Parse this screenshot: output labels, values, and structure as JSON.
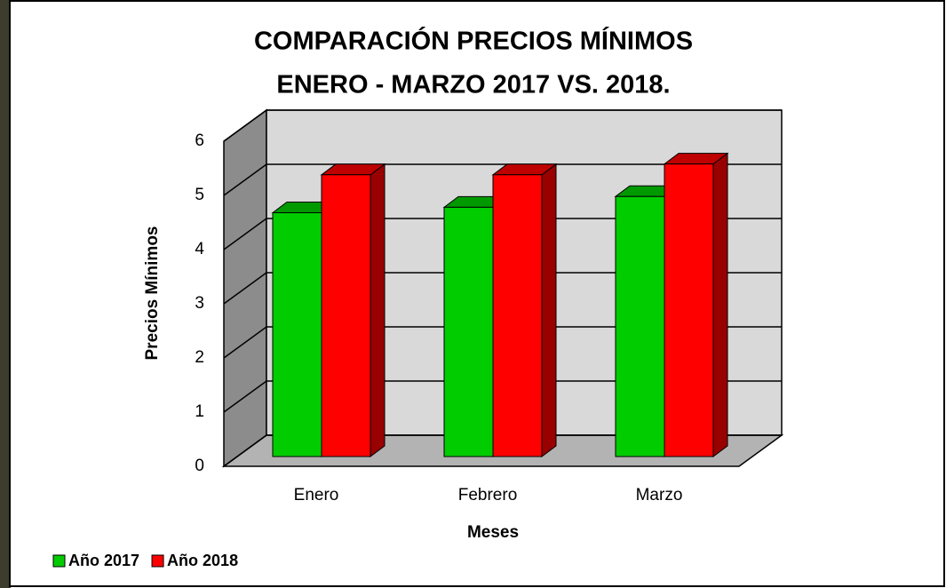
{
  "chart_data": {
    "type": "bar3d",
    "title": "COMPARACIÓN PRECIOS MÍNIMOS",
    "subtitle": "ENERO - MARZO 2017 VS. 2018.",
    "x_label": "Meses",
    "y_label": "Precios Mínimos",
    "categories": [
      "Enero",
      "Febrero",
      "Marzo"
    ],
    "series": [
      {
        "name": "Año 2017",
        "color": "#00cc00",
        "values": [
          4.5,
          4.6,
          4.8
        ]
      },
      {
        "name": "Año 2018",
        "color": "#ff0000",
        "values": [
          5.2,
          5.2,
          5.4
        ]
      }
    ],
    "ylim": [
      0,
      6
    ],
    "yticks": [
      0,
      1,
      2,
      3,
      4,
      5,
      6
    ],
    "grid": true
  }
}
